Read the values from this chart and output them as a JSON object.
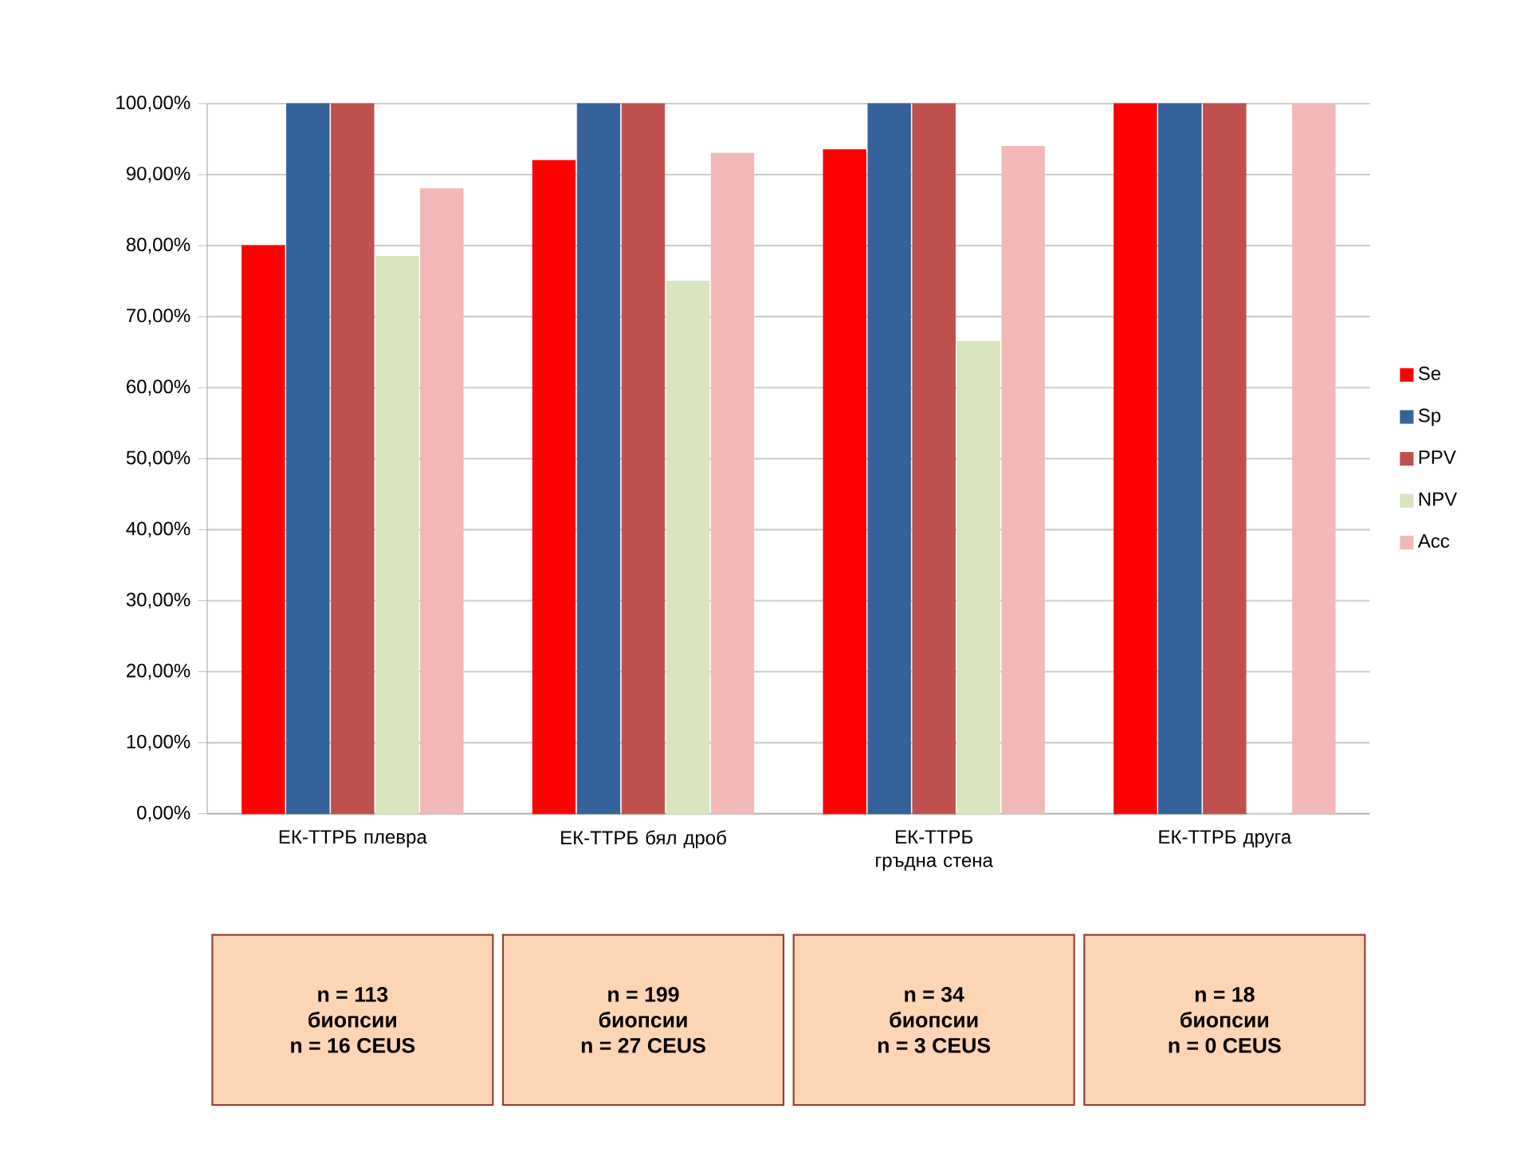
{
  "chart_data": {
    "type": "bar",
    "categories": [
      "ЕК-ТТРБ плевра",
      "ЕК-ТТРБ бял дроб",
      "ЕК-ТТРБ гръдна стена",
      "ЕК-ТТРБ друга"
    ],
    "series": [
      {
        "name": "Se",
        "color": "#ff0000",
        "values": [
          80,
          92,
          93.5,
          100
        ]
      },
      {
        "name": "Sp",
        "color": "#35629a",
        "values": [
          100,
          100,
          100,
          100
        ]
      },
      {
        "name": "PPV",
        "color": "#c0504d",
        "values": [
          100,
          100,
          100,
          100
        ]
      },
      {
        "name": "NPV",
        "color": "#d7e4bd",
        "values": [
          78.5,
          75,
          66.5,
          0
        ]
      },
      {
        "name": "Acc",
        "color": "#f2b8b8",
        "values": [
          88,
          93,
          94,
          100
        ]
      }
    ],
    "ylim": [
      0,
      100
    ],
    "yticks": [
      {
        "value": 0,
        "label": "0,00%"
      },
      {
        "value": 10,
        "label": "10,00%"
      },
      {
        "value": 20,
        "label": "20,00%"
      },
      {
        "value": 30,
        "label": "30,00%"
      },
      {
        "value": 40,
        "label": "40,00%"
      },
      {
        "value": 50,
        "label": "50,00%"
      },
      {
        "value": 60,
        "label": "60,00%"
      },
      {
        "value": 70,
        "label": "70,00%"
      },
      {
        "value": 80,
        "label": "80,00%"
      },
      {
        "value": 90,
        "label": "90,00%"
      },
      {
        "value": 100,
        "label": "100,00%"
      }
    ],
    "grid": "y",
    "legend": "right",
    "annotations": [
      "n = 113",
      "биопсии",
      "n = 16 CEUS",
      "n = 199",
      "биопсии",
      "n = 27 CEUS",
      "n = 34",
      "биопсии",
      "n = 3 CEUS",
      "n = 18",
      "биопсии",
      "n = 0 CEUS"
    ]
  }
}
